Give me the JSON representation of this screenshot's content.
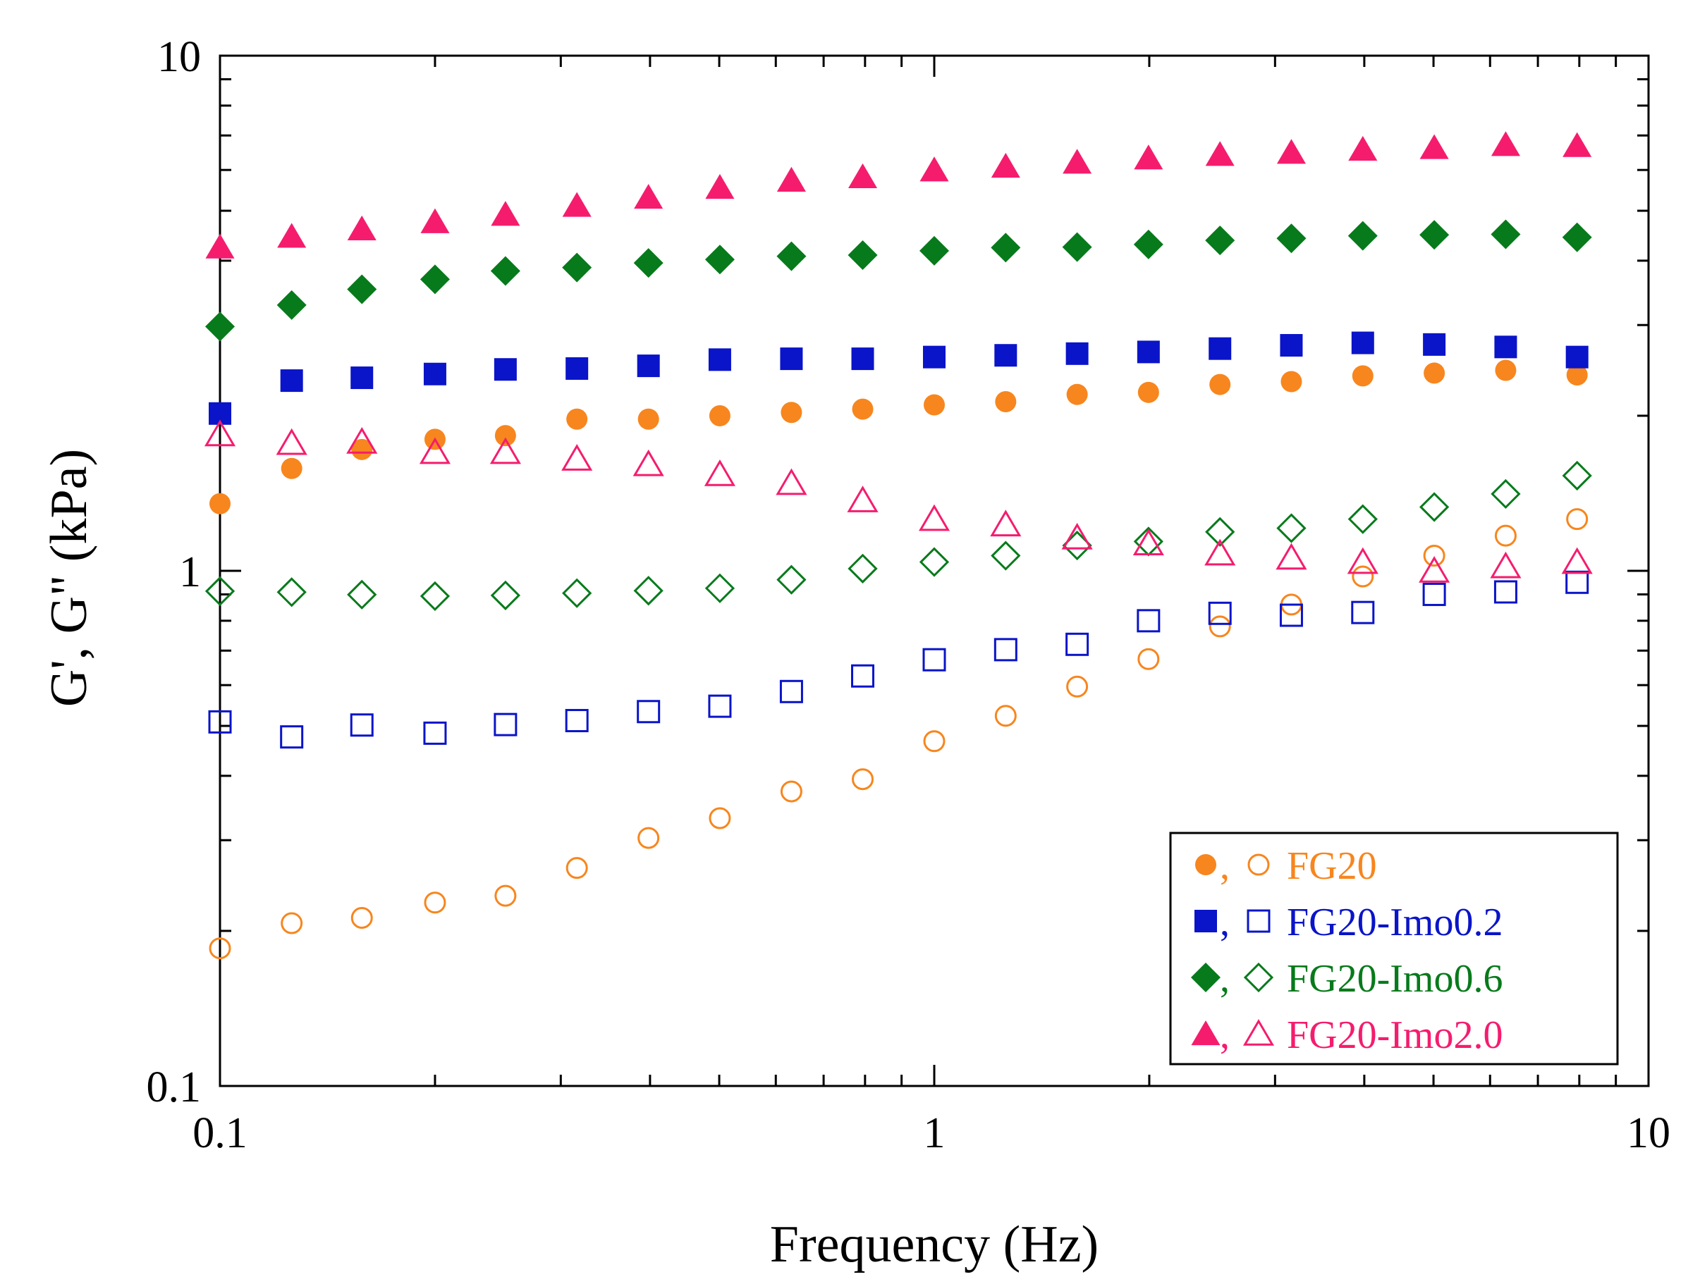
{
  "chart_data": {
    "type": "scatter",
    "xscale": "log",
    "yscale": "log",
    "xlim": [
      0.1,
      10
    ],
    "ylim": [
      0.1,
      10
    ],
    "xlabel": "Frequency (Hz)",
    "ylabel": "G', G\"  (kPa)",
    "xticks": [
      {
        "value": 0.1,
        "label": "0.1"
      },
      {
        "value": 1,
        "label": "1"
      },
      {
        "value": 10,
        "label": "10"
      }
    ],
    "yticks": [
      {
        "value": 0.1,
        "label": "0.1"
      },
      {
        "value": 1,
        "label": "1"
      },
      {
        "value": 10,
        "label": "10"
      }
    ],
    "legend_position": "bottom-right",
    "x": [
      0.1,
      0.126,
      0.158,
      0.2,
      0.251,
      0.316,
      0.398,
      0.501,
      0.631,
      0.794,
      1.0,
      1.259,
      1.585,
      1.995,
      2.512,
      3.162,
      3.981,
      5.012,
      6.31,
      7.943
    ],
    "series": [
      {
        "name": "FG20",
        "legend_label": "FG20",
        "color": "#f7861e",
        "marker": "circle",
        "G_prime": [
          1.35,
          1.58,
          1.72,
          1.8,
          1.83,
          1.97,
          1.97,
          2.0,
          2.03,
          2.06,
          2.1,
          2.13,
          2.2,
          2.22,
          2.3,
          2.33,
          2.39,
          2.42,
          2.45,
          2.4
        ],
        "G_double_prime": [
          0.185,
          0.207,
          0.212,
          0.227,
          0.234,
          0.265,
          0.303,
          0.331,
          0.373,
          0.394,
          0.467,
          0.523,
          0.596,
          0.674,
          0.78,
          0.86,
          0.975,
          1.07,
          1.17,
          1.26
        ]
      },
      {
        "name": "FG20-Imo0.2",
        "legend_label": "FG20-Imo0.2",
        "color": "#0a14c8",
        "marker": "square",
        "G_prime": [
          2.02,
          2.34,
          2.37,
          2.41,
          2.46,
          2.47,
          2.5,
          2.57,
          2.58,
          2.58,
          2.6,
          2.62,
          2.64,
          2.66,
          2.7,
          2.74,
          2.77,
          2.75,
          2.72,
          2.6
        ],
        "G_double_prime": [
          0.509,
          0.476,
          0.502,
          0.484,
          0.503,
          0.512,
          0.533,
          0.546,
          0.583,
          0.625,
          0.672,
          0.703,
          0.72,
          0.8,
          0.827,
          0.82,
          0.83,
          0.9,
          0.91,
          0.95
        ]
      },
      {
        "name": "FG20-Imo0.6",
        "legend_label": "FG20-Imo0.6",
        "color": "#077a1b",
        "marker": "diamond",
        "G_prime": [
          2.98,
          3.28,
          3.52,
          3.68,
          3.82,
          3.88,
          3.96,
          4.02,
          4.08,
          4.1,
          4.18,
          4.24,
          4.25,
          4.3,
          4.38,
          4.42,
          4.47,
          4.49,
          4.5,
          4.44
        ],
        "G_double_prime": [
          0.913,
          0.909,
          0.899,
          0.893,
          0.896,
          0.905,
          0.915,
          0.925,
          0.961,
          1.01,
          1.04,
          1.07,
          1.12,
          1.14,
          1.19,
          1.21,
          1.26,
          1.33,
          1.41,
          1.53
        ]
      },
      {
        "name": "FG20-Imo2.0",
        "legend_label": "FG20-Imo2.0",
        "color": "#f51c6e",
        "marker": "triangle",
        "G_prime": [
          4.25,
          4.46,
          4.61,
          4.76,
          4.92,
          5.12,
          5.31,
          5.55,
          5.73,
          5.82,
          6.0,
          6.1,
          6.21,
          6.33,
          6.43,
          6.49,
          6.58,
          6.63,
          6.72,
          6.69
        ],
        "G_double_prime": [
          1.84,
          1.77,
          1.78,
          1.7,
          1.7,
          1.65,
          1.61,
          1.54,
          1.48,
          1.37,
          1.26,
          1.23,
          1.16,
          1.13,
          1.08,
          1.06,
          1.04,
          1.0,
          1.02,
          1.04
        ]
      }
    ]
  }
}
